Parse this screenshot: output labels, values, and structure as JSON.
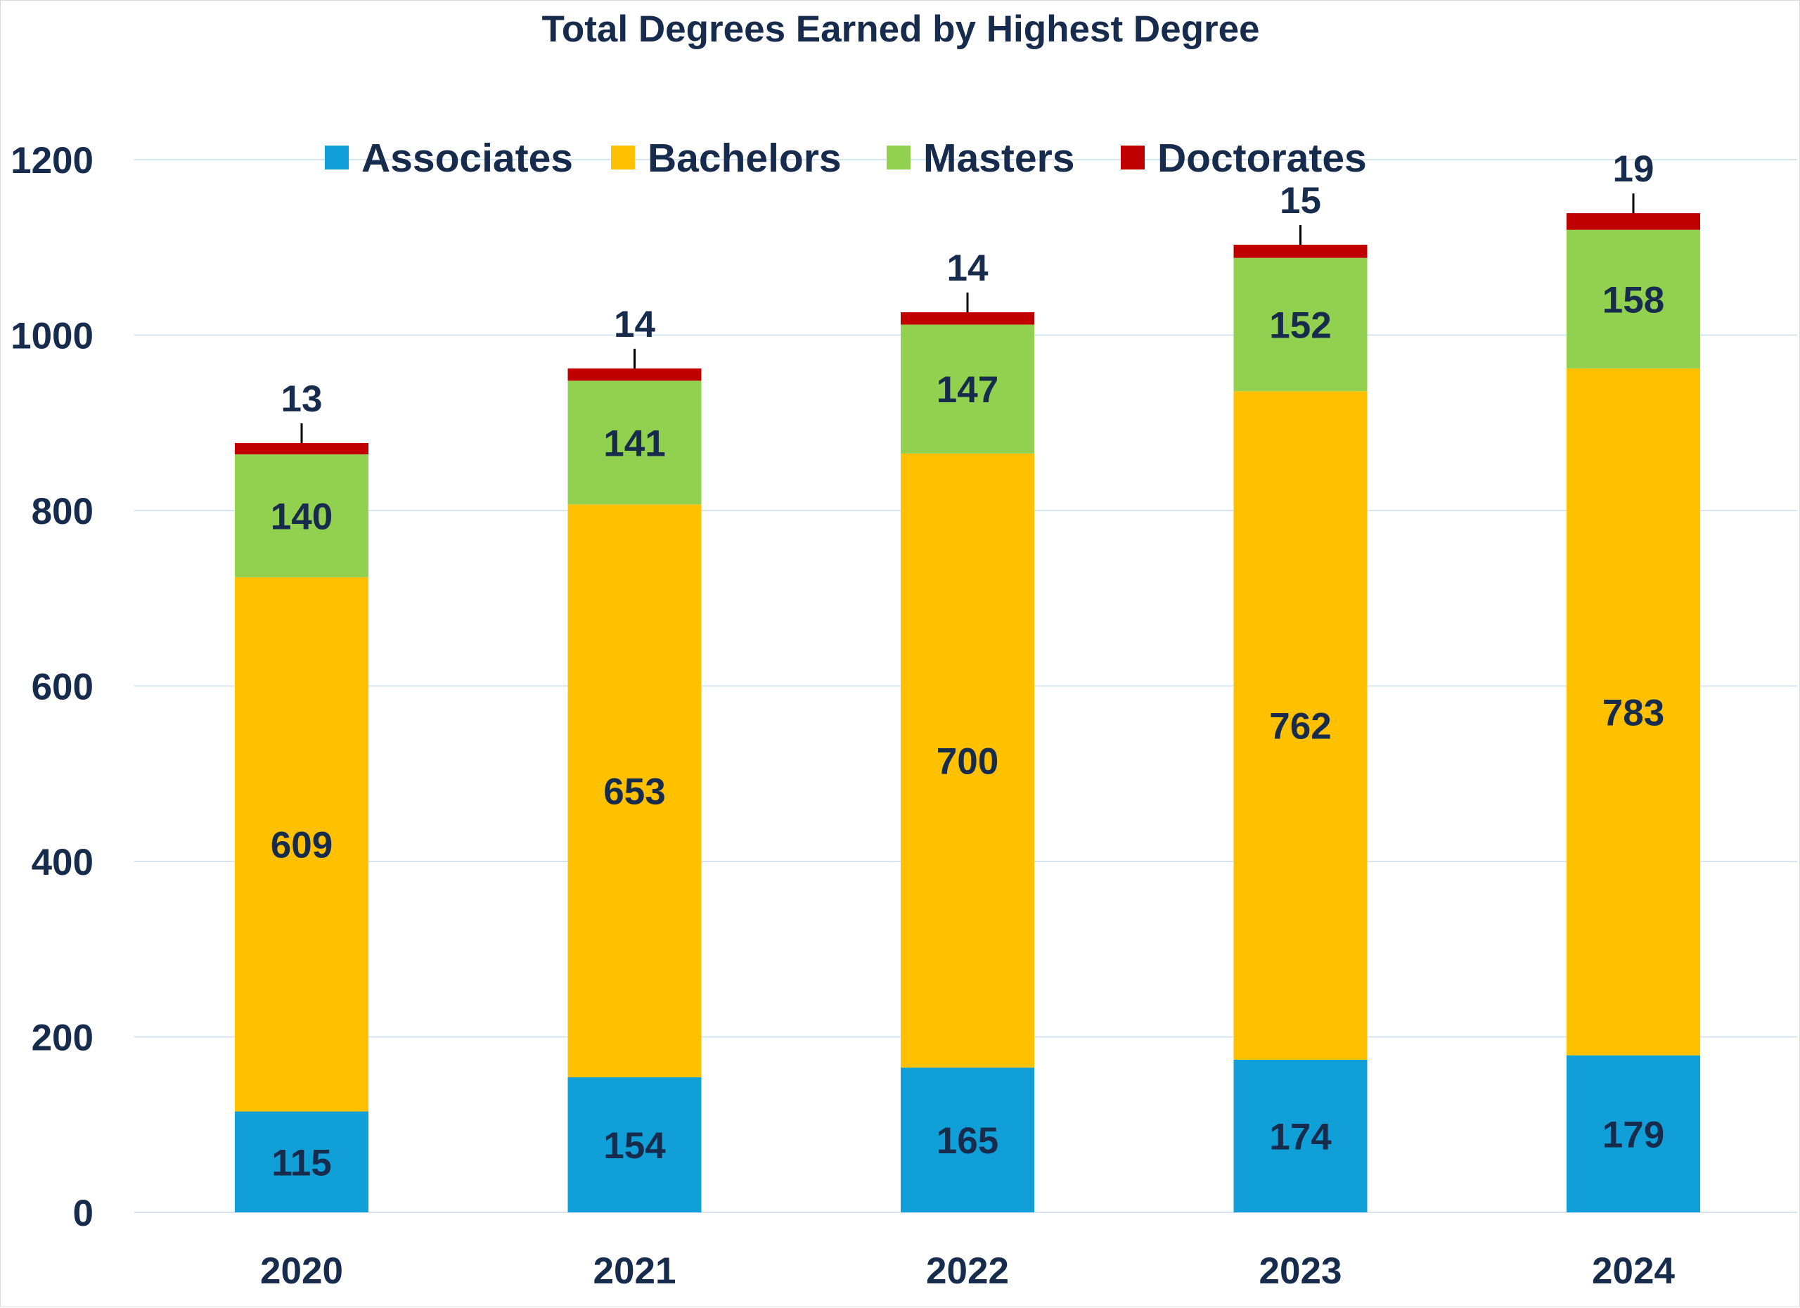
{
  "chart_data": {
    "type": "bar",
    "stacked": true,
    "title": "Total Degrees Earned by Highest Degree",
    "xlabel": "",
    "ylabel": "",
    "categories": [
      "2020",
      "2021",
      "2022",
      "2023",
      "2024"
    ],
    "series": [
      {
        "name": "Associates",
        "color": "#119FD7",
        "values": [
          115,
          154,
          165,
          174,
          179
        ]
      },
      {
        "name": "Bachelors",
        "color": "#FFC000",
        "values": [
          609,
          653,
          700,
          762,
          783
        ]
      },
      {
        "name": "Masters",
        "color": "#92D050",
        "values": [
          140,
          141,
          147,
          152,
          158
        ]
      },
      {
        "name": "Doctorates",
        "color": "#C00000",
        "values": [
          13,
          14,
          14,
          15,
          19
        ]
      }
    ],
    "ylim": [
      0,
      1200
    ],
    "yticks": [
      "0",
      "200",
      "400",
      "600",
      "800",
      "1000",
      "1200"
    ],
    "grid": true,
    "legend_position": "top",
    "text_color": "#172B4D",
    "grid_color": "#D6E4F0"
  }
}
